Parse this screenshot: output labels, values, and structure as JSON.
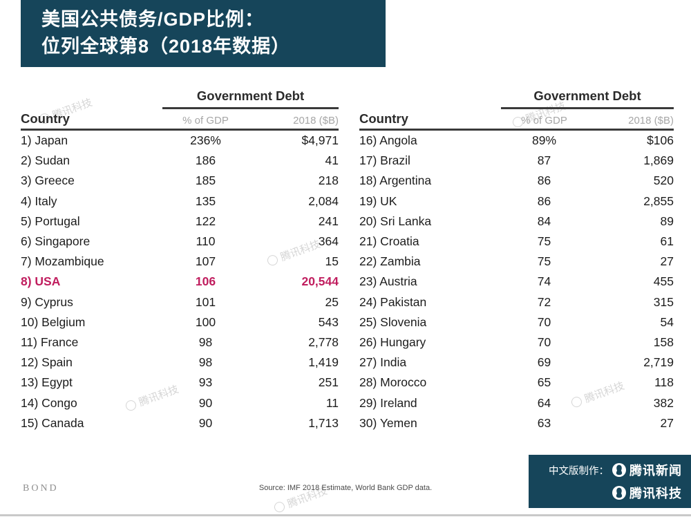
{
  "title": {
    "line1": "美国公共债务/GDP比例：",
    "line2": "位列全球第8（2018年数据）"
  },
  "colors": {
    "teal": "#16455a",
    "highlight": "#c01d5e",
    "rule": "#3a3a3a",
    "subheader_text": "#a6a6a6",
    "body_text": "#1c1c1c"
  },
  "chart_data": {
    "type": "table",
    "title": "美国公共债务/GDP比例：位列全球第8（2018年数据）",
    "group_header": "Government Debt",
    "columns": [
      "Country",
      "% of GDP",
      "2018 ($B)"
    ],
    "highlighted_row": "8) USA",
    "tables": [
      {
        "headers": {
          "group": "Government Debt",
          "country": "Country",
          "pct": "% of GDP",
          "year": "2018 ($B)"
        },
        "rows": [
          {
            "rank": "1)",
            "country": "Japan",
            "pct": "236%",
            "debt": "$4,971",
            "highlight": false
          },
          {
            "rank": "2)",
            "country": "Sudan",
            "pct": "186",
            "debt": "41",
            "highlight": false
          },
          {
            "rank": "3)",
            "country": "Greece",
            "pct": "185",
            "debt": "218",
            "highlight": false
          },
          {
            "rank": "4)",
            "country": "Italy",
            "pct": "135",
            "debt": "2,084",
            "highlight": false
          },
          {
            "rank": "5)",
            "country": "Portugal",
            "pct": "122",
            "debt": "241",
            "highlight": false
          },
          {
            "rank": "6)",
            "country": "Singapore",
            "pct": "110",
            "debt": "364",
            "highlight": false
          },
          {
            "rank": "7)",
            "country": "Mozambique",
            "pct": "107",
            "debt": "15",
            "highlight": false
          },
          {
            "rank": "8)",
            "country": "USA",
            "pct": "106",
            "debt": "20,544",
            "highlight": true
          },
          {
            "rank": "9)",
            "country": "Cyprus",
            "pct": "101",
            "debt": "25",
            "highlight": false
          },
          {
            "rank": "10)",
            "country": "Belgium",
            "pct": "100",
            "debt": "543",
            "highlight": false
          },
          {
            "rank": "11)",
            "country": "France",
            "pct": "98",
            "debt": "2,778",
            "highlight": false
          },
          {
            "rank": "12)",
            "country": "Spain",
            "pct": "98",
            "debt": "1,419",
            "highlight": false
          },
          {
            "rank": "13)",
            "country": "Egypt",
            "pct": "93",
            "debt": "251",
            "highlight": false
          },
          {
            "rank": "14)",
            "country": "Congo",
            "pct": "90",
            "debt": "11",
            "highlight": false
          },
          {
            "rank": "15)",
            "country": "Canada",
            "pct": "90",
            "debt": "1,713",
            "highlight": false
          }
        ]
      },
      {
        "headers": {
          "group": "Government Debt",
          "country": "Country",
          "pct": "% of GDP",
          "year": "2018 ($B)"
        },
        "rows": [
          {
            "rank": "16)",
            "country": "Angola",
            "pct": "89%",
            "debt": "$106",
            "highlight": false
          },
          {
            "rank": "17)",
            "country": "Brazil",
            "pct": "87",
            "debt": "1,869",
            "highlight": false
          },
          {
            "rank": "18)",
            "country": "Argentina",
            "pct": "86",
            "debt": "520",
            "highlight": false
          },
          {
            "rank": "19)",
            "country": "UK",
            "pct": "86",
            "debt": "2,855",
            "highlight": false
          },
          {
            "rank": "20)",
            "country": "Sri Lanka",
            "pct": "84",
            "debt": "89",
            "highlight": false
          },
          {
            "rank": "21)",
            "country": "Croatia",
            "pct": "75",
            "debt": "61",
            "highlight": false
          },
          {
            "rank": "22)",
            "country": "Zambia",
            "pct": "75",
            "debt": "27",
            "highlight": false
          },
          {
            "rank": "23)",
            "country": "Austria",
            "pct": "74",
            "debt": "455",
            "highlight": false
          },
          {
            "rank": "24)",
            "country": "Pakistan",
            "pct": "72",
            "debt": "315",
            "highlight": false
          },
          {
            "rank": "25)",
            "country": "Slovenia",
            "pct": "70",
            "debt": "54",
            "highlight": false
          },
          {
            "rank": "26)",
            "country": "Hungary",
            "pct": "70",
            "debt": "158",
            "highlight": false
          },
          {
            "rank": "27)",
            "country": "India",
            "pct": "69",
            "debt": "2,719",
            "highlight": false
          },
          {
            "rank": "28)",
            "country": "Morocco",
            "pct": "65",
            "debt": "118",
            "highlight": false
          },
          {
            "rank": "29)",
            "country": "Ireland",
            "pct": "64",
            "debt": "382",
            "highlight": false
          },
          {
            "rank": "30)",
            "country": "Yemen",
            "pct": "63",
            "debt": "27",
            "highlight": false
          }
        ]
      }
    ]
  },
  "footer": {
    "brand": "BOND",
    "source": "Source: IMF 2018 Estimate, World Bank GDP data.",
    "credit_label": "中文版制作：",
    "credit_1": "腾讯新闻",
    "credit_2": "腾讯科技"
  },
  "watermark_text": "腾讯科技"
}
